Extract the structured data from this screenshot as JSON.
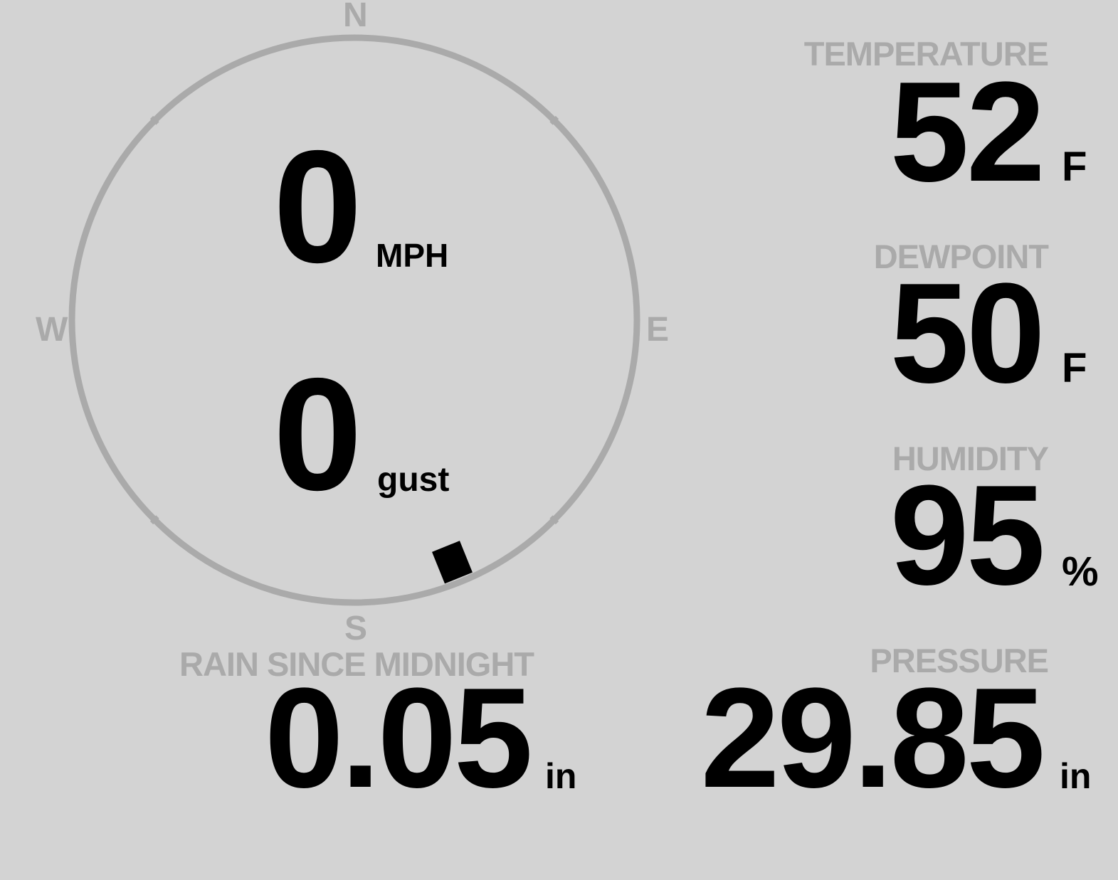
{
  "colors": {
    "background": "#d3d3d3",
    "label": "#aaaaaa",
    "value": "#000000",
    "compass_ring": "#aaaaaa"
  },
  "compass": {
    "north": "N",
    "east": "E",
    "south": "S",
    "west": "W",
    "wind_direction_deg": 158
  },
  "wind": {
    "speed": "0",
    "speed_unit": "MPH",
    "gust": "0",
    "gust_unit": "gust"
  },
  "temperature": {
    "label": "TEMPERATURE",
    "value": "52",
    "unit": "F"
  },
  "dewpoint": {
    "label": "DEWPOINT",
    "value": "50",
    "unit": "F"
  },
  "humidity": {
    "label": "HUMIDITY",
    "value": "95",
    "unit": "%"
  },
  "pressure": {
    "label": "PRESSURE",
    "value": "29.85",
    "unit": "in"
  },
  "rain": {
    "label": "RAIN SINCE MIDNIGHT",
    "value": "0.05",
    "unit": "in"
  }
}
